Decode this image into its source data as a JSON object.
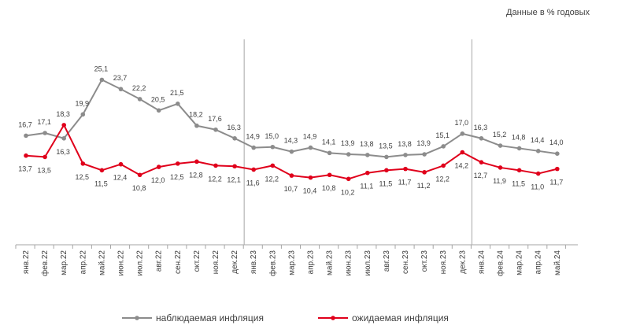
{
  "note": "Данные в % годовых",
  "chart_data": {
    "type": "line",
    "categories": [
      "янв.22",
      "фев.22",
      "мар.22",
      "апр.22",
      "май.22",
      "июн.22",
      "июл.22",
      "авг.22",
      "сен.22",
      "окт.22",
      "ноя.22",
      "дек.22",
      "янв.23",
      "фев.23",
      "мар.23",
      "апр.23",
      "май.23",
      "июн.23",
      "июл.23",
      "авг.23",
      "сен.23",
      "окт.23",
      "ноя.23",
      "дек.23",
      "янв.24",
      "фев.24",
      "мар.24",
      "апр.24",
      "май.24"
    ],
    "series": [
      {
        "name": "наблюдаемая инфляция",
        "color": "#8c8c8c",
        "values": [
          16.7,
          17.1,
          16.3,
          19.9,
          25.1,
          23.7,
          22.2,
          20.5,
          21.5,
          18.2,
          17.6,
          16.3,
          14.9,
          15.0,
          14.3,
          14.9,
          14.1,
          13.9,
          13.8,
          13.5,
          13.8,
          13.9,
          15.1,
          17.0,
          16.3,
          15.2,
          14.8,
          14.4,
          14.0
        ],
        "labels": [
          "16,7",
          "17,1",
          "16,3",
          "19,9",
          "25,1",
          "23,7",
          "22,2",
          "20,5",
          "21,5",
          "18,2",
          "17,6",
          "16,3",
          "14,9",
          "15,0",
          "14,3",
          "14,9",
          "14,1",
          "13,9",
          "13,8",
          "13,5",
          "13,8",
          "13,9",
          "15,1",
          "17,0",
          "16,3",
          "15,2",
          "14,8",
          "14,4",
          "14,0"
        ]
      },
      {
        "name": "ожидаемая инфляция",
        "color": "#e0001b",
        "values": [
          13.7,
          13.5,
          18.3,
          12.5,
          11.5,
          12.4,
          10.8,
          12.0,
          12.5,
          12.8,
          12.2,
          12.1,
          11.6,
          12.2,
          10.7,
          10.4,
          10.8,
          10.2,
          11.1,
          11.5,
          11.7,
          11.2,
          12.2,
          14.2,
          12.7,
          11.9,
          11.5,
          11.0,
          11.7
        ],
        "labels": [
          "13,7",
          "13,5",
          "18,3",
          "12,5",
          "11,5",
          "12,4",
          "10,8",
          "12,0",
          "12,5",
          "12,8",
          "12,2",
          "12,1",
          "11,6",
          "12,2",
          "10,7",
          "10,4",
          "10,8",
          "10,2",
          "11,1",
          "11,5",
          "11,7",
          "11,2",
          "12,2",
          "14,2",
          "12,7",
          "11,9",
          "11,5",
          "11,0",
          "11,7"
        ]
      }
    ],
    "year_separators_after": [
      "дек.22",
      "дек.23"
    ],
    "grid": false,
    "legend": "bottom-center"
  }
}
